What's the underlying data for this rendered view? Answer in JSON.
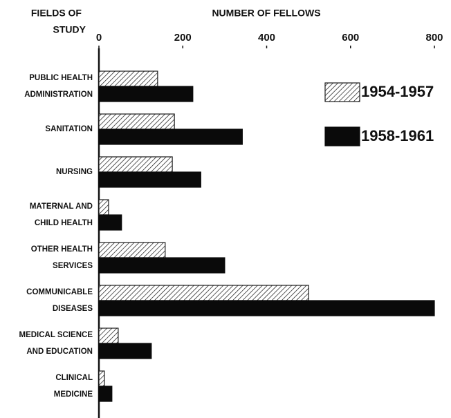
{
  "chart_data": {
    "type": "barh",
    "title": "NUMBER OF FELLOWS",
    "y_label": [
      "FIELDS OF",
      "STUDY"
    ],
    "categories": [
      "PUBLIC HEALTH\nADMINISTRATION",
      "SANITATION",
      "NURSING",
      "MATERNAL AND\nCHILD HEALTH",
      "OTHER HEALTH\nSERVICES",
      "COMMUNICABLE\nDISEASES",
      "MEDICAL SCIENCE\nAND EDUCATION",
      "CLINICAL\nMEDICINE"
    ],
    "series": [
      {
        "name": "1954-1957",
        "color": "#1a1a1a",
        "hatch": true,
        "values": [
          140,
          180,
          175,
          23,
          158,
          500,
          46,
          13
        ]
      },
      {
        "name": "1958-1961",
        "color": "#0a0a0a",
        "hatch": false,
        "values": [
          224,
          342,
          243,
          54,
          300,
          800,
          125,
          31
        ]
      }
    ],
    "xlim": [
      0,
      800
    ],
    "xticks": [
      0,
      200,
      400,
      600,
      800
    ]
  }
}
